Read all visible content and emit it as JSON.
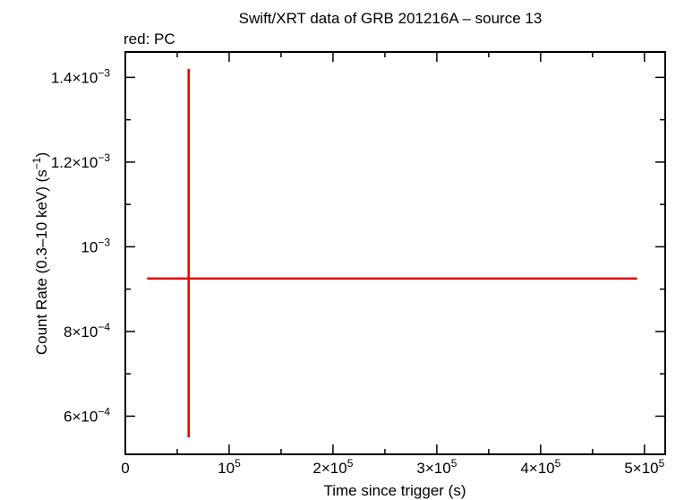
{
  "chart_data": {
    "type": "scatter",
    "title": "Swift/XRT data of GRB 201216A – source 13",
    "legend_note": "red: PC",
    "xlabel": "Time since trigger (s)",
    "ylabel_main": "Count Rate (0.3–10 keV) (s",
    "ylabel_sup": "−1",
    "ylabel_close": ")",
    "xlim": [
      0,
      520000
    ],
    "ylim": [
      0.00051,
      0.00146
    ],
    "x_ticks": [
      {
        "value": 0,
        "mant": "0",
        "exp": ""
      },
      {
        "value": 100000,
        "mant": "10",
        "exp": "5"
      },
      {
        "value": 200000,
        "mant": "2×10",
        "exp": "5"
      },
      {
        "value": 300000,
        "mant": "3×10",
        "exp": "5"
      },
      {
        "value": 400000,
        "mant": "4×10",
        "exp": "5"
      },
      {
        "value": 500000,
        "mant": "5×10",
        "exp": "5"
      }
    ],
    "y_ticks": [
      {
        "value": 0.0006,
        "mant": "6×10",
        "exp": "−4"
      },
      {
        "value": 0.0008,
        "mant": "8×10",
        "exp": "−4"
      },
      {
        "value": 0.001,
        "mant": "10",
        "exp": "−3"
      },
      {
        "value": 0.0012,
        "mant": "1.2×10",
        "exp": "−3"
      },
      {
        "value": 0.0014,
        "mant": "1.4×10",
        "exp": "−3"
      }
    ],
    "series": [
      {
        "color": "#e00000",
        "points": [
          {
            "x": 61000,
            "x_lo": 21000,
            "x_hi": 493000,
            "y": 0.000925,
            "y_lo": 0.00055,
            "y_hi": 0.00142
          }
        ]
      }
    ]
  }
}
